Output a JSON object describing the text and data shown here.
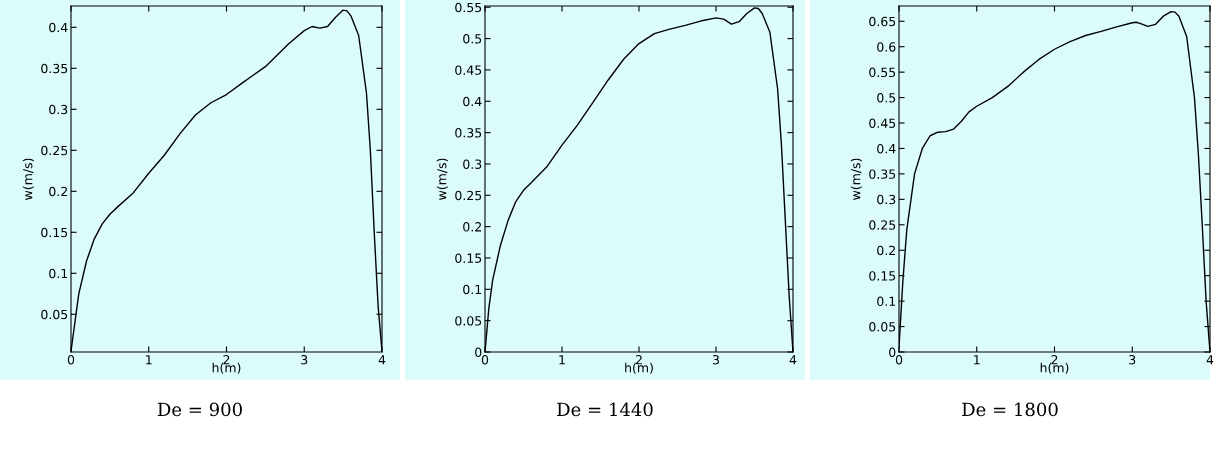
{
  "chart_data": [
    {
      "type": "line",
      "xlabel": "h(m)",
      "ylabel": "w(m/s)",
      "xlim": [
        0,
        4
      ],
      "ylim": [
        0.004,
        0.426
      ],
      "xticks": [
        0,
        1,
        2,
        3,
        4
      ],
      "yticks": [
        0.05,
        0.1,
        0.15,
        0.2,
        0.25,
        0.3,
        0.35,
        0.4
      ],
      "grid": false,
      "annotations": [
        "De = 900"
      ],
      "series": [
        {
          "color": "#000000",
          "x": [
            0,
            0.05,
            0.1,
            0.2,
            0.3,
            0.4,
            0.5,
            0.6,
            0.8,
            1.0,
            1.2,
            1.4,
            1.6,
            1.8,
            2.0,
            2.2,
            2.5,
            2.8,
            3.0,
            3.1,
            3.2,
            3.3,
            3.4,
            3.5,
            3.55,
            3.6,
            3.7,
            3.8,
            3.85,
            3.9,
            3.95,
            4.0
          ],
          "values": [
            0.005,
            0.04,
            0.075,
            0.115,
            0.142,
            0.16,
            0.172,
            0.181,
            0.198,
            0.222,
            0.244,
            0.27,
            0.293,
            0.308,
            0.318,
            0.332,
            0.352,
            0.38,
            0.396,
            0.401,
            0.399,
            0.401,
            0.412,
            0.421,
            0.42,
            0.414,
            0.39,
            0.32,
            0.25,
            0.15,
            0.06,
            0.005
          ]
        }
      ]
    },
    {
      "type": "line",
      "xlabel": "h(m)",
      "ylabel": "w(m/s)",
      "xlim": [
        0,
        4
      ],
      "ylim": [
        0,
        0.552
      ],
      "xticks": [
        0,
        1,
        2,
        3,
        4
      ],
      "yticks": [
        0,
        0.05,
        0.1,
        0.15,
        0.2,
        0.25,
        0.3,
        0.35,
        0.4,
        0.45,
        0.5,
        0.55
      ],
      "grid": false,
      "annotations": [
        "De = 1440"
      ],
      "series": [
        {
          "color": "#000000",
          "x": [
            0,
            0.05,
            0.1,
            0.2,
            0.3,
            0.4,
            0.5,
            0.6,
            0.8,
            1.0,
            1.2,
            1.4,
            1.6,
            1.8,
            2.0,
            2.2,
            2.4,
            2.6,
            2.8,
            3.0,
            3.1,
            3.2,
            3.3,
            3.4,
            3.5,
            3.55,
            3.6,
            3.7,
            3.8,
            3.85,
            3.9,
            3.95,
            4.0
          ],
          "values": [
            0,
            0.07,
            0.115,
            0.17,
            0.21,
            0.24,
            0.258,
            0.27,
            0.295,
            0.33,
            0.362,
            0.398,
            0.434,
            0.467,
            0.492,
            0.508,
            0.515,
            0.521,
            0.528,
            0.533,
            0.531,
            0.523,
            0.527,
            0.54,
            0.549,
            0.548,
            0.54,
            0.51,
            0.42,
            0.33,
            0.21,
            0.09,
            0
          ]
        }
      ]
    },
    {
      "type": "line",
      "xlabel": "h(m)",
      "ylabel": "w(m/s)",
      "xlim": [
        0,
        4
      ],
      "ylim": [
        0,
        0.68
      ],
      "xticks": [
        0,
        1,
        2,
        3,
        4
      ],
      "yticks": [
        0,
        0.05,
        0.1,
        0.15,
        0.2,
        0.25,
        0.3,
        0.35,
        0.4,
        0.45,
        0.5,
        0.55,
        0.6,
        0.65
      ],
      "grid": false,
      "annotations": [
        "De = 1800"
      ],
      "series": [
        {
          "color": "#000000",
          "x": [
            0,
            0.05,
            0.1,
            0.2,
            0.3,
            0.4,
            0.5,
            0.6,
            0.7,
            0.8,
            0.9,
            1.0,
            1.2,
            1.4,
            1.6,
            1.8,
            2.0,
            2.2,
            2.4,
            2.6,
            2.8,
            3.0,
            3.05,
            3.1,
            3.2,
            3.3,
            3.4,
            3.5,
            3.55,
            3.6,
            3.7,
            3.8,
            3.85,
            3.9,
            3.95,
            4.0
          ],
          "values": [
            0.01,
            0.14,
            0.24,
            0.35,
            0.4,
            0.425,
            0.432,
            0.433,
            0.438,
            0.453,
            0.472,
            0.483,
            0.5,
            0.522,
            0.55,
            0.575,
            0.595,
            0.61,
            0.622,
            0.63,
            0.639,
            0.647,
            0.648,
            0.646,
            0.64,
            0.644,
            0.66,
            0.669,
            0.668,
            0.66,
            0.62,
            0.5,
            0.39,
            0.25,
            0.1,
            0
          ]
        }
      ]
    }
  ]
}
